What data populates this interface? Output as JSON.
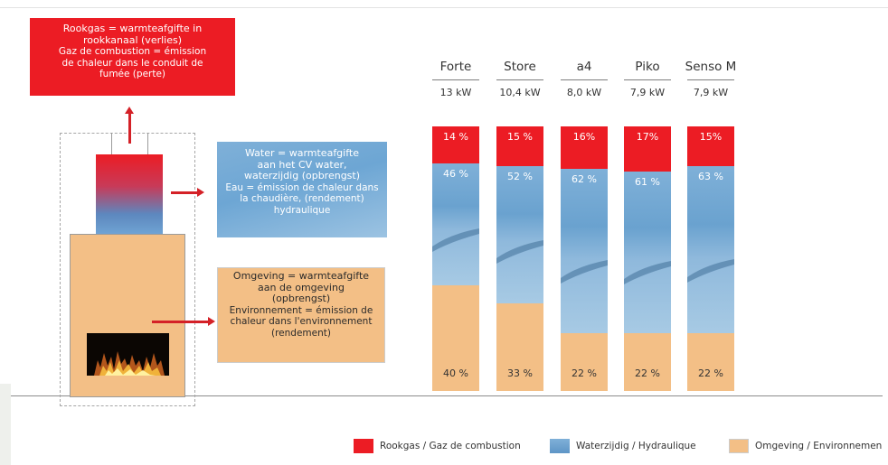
{
  "callouts": {
    "flue": {
      "title_lines": [
        "Rookgas = warmteafgifte in",
        "rookkanaal (verlies)"
      ],
      "sub_lines": [
        "Gaz de combustion = émission",
        "de chaleur dans le conduit de",
        "fumée (perte)"
      ]
    },
    "water": {
      "title_lines": [
        "Water = warmteafgifte",
        "aan het CV water,",
        "waterzijdig (opbrengst)"
      ],
      "sub_lines": [
        "Eau = émission de chaleur dans",
        "la chaudière, (rendement)",
        "hydraulique"
      ]
    },
    "surround": {
      "title_lines": [
        "Omgeving = warmteafgifte",
        "aan de omgeving",
        "(opbrengst)"
      ],
      "sub_lines": [
        "Environnement = émission de",
        "chaleur dans l'environnement",
        "(rendement)"
      ]
    }
  },
  "chart_data": {
    "type": "bar",
    "stacked": true,
    "categories": [
      "Forte",
      "Store",
      "a4",
      "Piko",
      "Senso M"
    ],
    "power_labels": [
      "13 kW",
      "10,4 kW",
      "8,0 kW",
      "7,9 kW",
      "7,9 kW"
    ],
    "series": [
      {
        "name": "Rookgas / Gaz de combustion",
        "values": [
          14,
          15,
          16,
          17,
          15
        ],
        "labels": [
          "14 %",
          "15 %",
          "16%",
          "17%",
          "15%"
        ],
        "color": "#ec1c24"
      },
      {
        "name": "Waterzijdig / Hydraulique",
        "values": [
          46,
          52,
          62,
          61,
          63
        ],
        "labels": [
          "46 %",
          "52 %",
          "62 %",
          "61 %",
          "63 %"
        ],
        "color": "#6fa6d6"
      },
      {
        "name": "Omgeving / Environnemen",
        "values": [
          40,
          33,
          22,
          22,
          22
        ],
        "labels": [
          "40 %",
          "33 %",
          "22 %",
          "22 %",
          "22 %"
        ],
        "color": "#f3bf86"
      }
    ],
    "ylim": [
      0,
      100
    ]
  }
}
